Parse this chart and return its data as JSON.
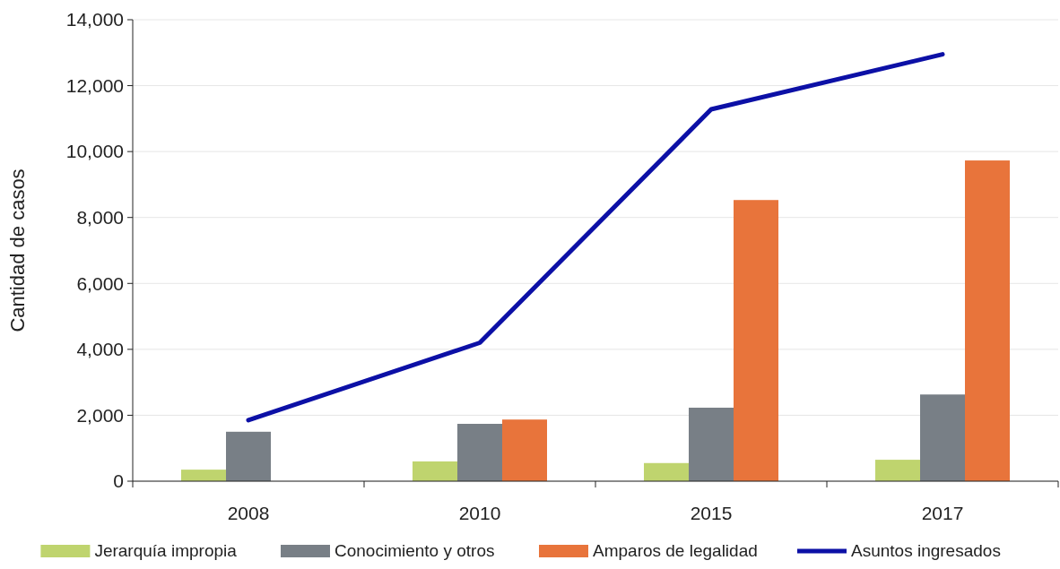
{
  "chart_data": {
    "type": "bar",
    "ylabel": "Cantidad de casos",
    "categories": [
      "2008",
      "2010",
      "2015",
      "2017"
    ],
    "series": [
      {
        "name": "Jerarquía impropia",
        "color": "#bfd46e",
        "values": [
          350,
          600,
          550,
          650
        ]
      },
      {
        "name": "Conocimiento y otros",
        "color": "#787f86",
        "values": [
          1500,
          1740,
          2230,
          2630
        ]
      },
      {
        "name": "Amparos de legalidad",
        "color": "#e8743b",
        "values": [
          null,
          1870,
          8530,
          9730
        ]
      },
      {
        "name": "Asuntos ingresados",
        "type": "line",
        "color": "#0c10a6",
        "values": [
          1850,
          4200,
          11280,
          12950
        ]
      }
    ],
    "ylim": [
      0,
      14000
    ],
    "yticks": [
      {
        "value": 0,
        "label": "0"
      },
      {
        "value": 2000,
        "label": "2,000"
      },
      {
        "value": 4000,
        "label": "4,000"
      },
      {
        "value": 6000,
        "label": "6,000"
      },
      {
        "value": 8000,
        "label": "8,000"
      },
      {
        "value": 10000,
        "label": "10,000"
      },
      {
        "value": 12000,
        "label": "12,000"
      },
      {
        "value": 14000,
        "label": "14,000"
      }
    ],
    "grid": "y",
    "legend": "bottom"
  }
}
